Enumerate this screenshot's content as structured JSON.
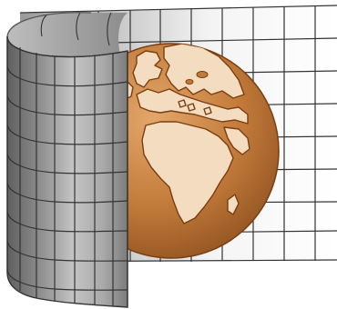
{
  "illustration": {
    "subject": "globe-wrapped-by-curved-grid-sheet",
    "icons": [
      "globe-icon",
      "grid-sheet-icon"
    ],
    "colors": {
      "background": "#ffffff",
      "grid_line": "#333333",
      "ocean_light": "#c98a4e",
      "ocean_dark": "#8a4e1d",
      "land": "#f4dcc0",
      "coast": "#7a3e12",
      "sheet_dark": "#6f6f6f",
      "sheet_light": "#f2f2f2"
    }
  }
}
